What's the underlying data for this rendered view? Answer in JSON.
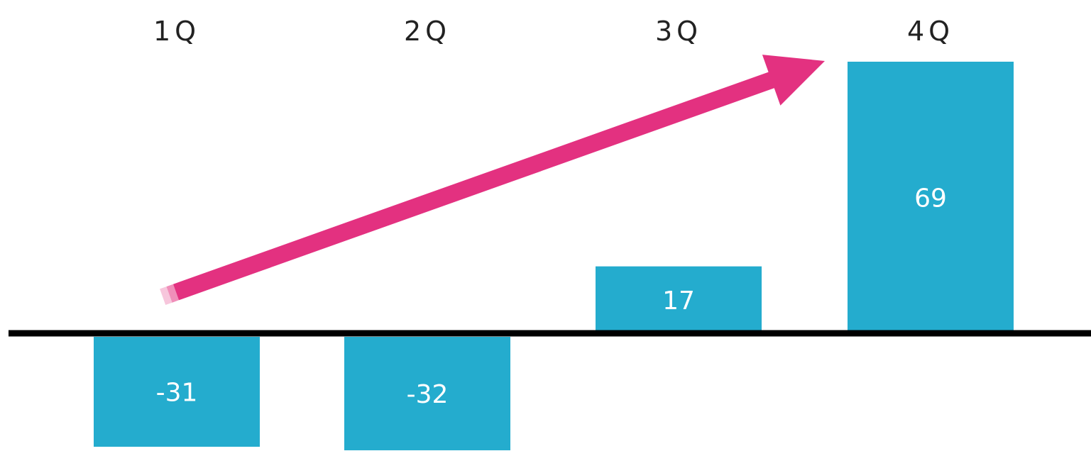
{
  "chart_data": {
    "type": "bar",
    "categories": [
      "1Q",
      "2Q",
      "3Q",
      "4Q"
    ],
    "values": [
      -31,
      -32,
      17,
      69
    ],
    "value_labels": [
      "-31",
      "-32",
      "17",
      "69"
    ],
    "title": "",
    "xlabel": "",
    "ylabel": "",
    "ylim": [
      -32,
      69
    ],
    "grid": false,
    "legend": "none",
    "colors": {
      "bar": "#24acce",
      "baseline": "#000000",
      "trend_arrow": "#e33180",
      "label_text": "#222222",
      "value_text": "#ffffff"
    },
    "annotations": [
      {
        "type": "trend-arrow",
        "from_category": "1Q",
        "to_category": "4Q",
        "direction": "up"
      }
    ]
  }
}
